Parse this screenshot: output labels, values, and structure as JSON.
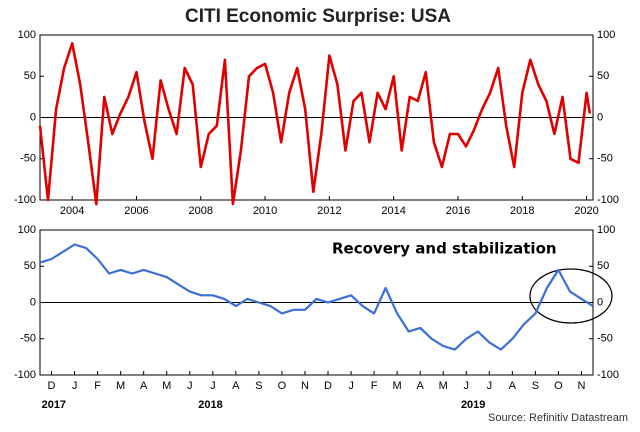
{
  "chart_data": [
    {
      "type": "line",
      "title": "CITI Economic Surprise: USA",
      "x": [
        2003.0,
        2003.25,
        2003.5,
        2003.75,
        2004.0,
        2004.25,
        2004.5,
        2004.75,
        2005.0,
        2005.25,
        2005.5,
        2005.75,
        2006.0,
        2006.25,
        2006.5,
        2006.75,
        2007.0,
        2007.25,
        2007.5,
        2007.75,
        2008.0,
        2008.25,
        2008.5,
        2008.75,
        2009.0,
        2009.25,
        2009.5,
        2009.75,
        2010.0,
        2010.25,
        2010.5,
        2010.75,
        2011.0,
        2011.25,
        2011.5,
        2011.75,
        2012.0,
        2012.25,
        2012.5,
        2012.75,
        2013.0,
        2013.25,
        2013.5,
        2013.75,
        2014.0,
        2014.25,
        2014.5,
        2014.75,
        2015.0,
        2015.25,
        2015.5,
        2015.75,
        2016.0,
        2016.25,
        2016.5,
        2016.75,
        2017.0,
        2017.25,
        2017.5,
        2017.75,
        2018.0,
        2018.25,
        2018.5,
        2018.75,
        2019.0,
        2019.25,
        2019.5,
        2019.75,
        2020.0,
        2020.1
      ],
      "series": [
        {
          "color": "#e00000",
          "values": [
            -10,
            -100,
            10,
            60,
            90,
            40,
            -30,
            -105,
            25,
            -20,
            5,
            25,
            55,
            -5,
            -50,
            45,
            10,
            -20,
            60,
            40,
            -60,
            -20,
            -10,
            70,
            -105,
            -40,
            50,
            60,
            65,
            30,
            -30,
            30,
            60,
            10,
            -90,
            -20,
            75,
            40,
            -40,
            20,
            30,
            -30,
            30,
            10,
            50,
            -40,
            25,
            20,
            55,
            -30,
            -60,
            -20,
            -20,
            -35,
            -15,
            10,
            30,
            60,
            -10,
            -60,
            30,
            70,
            40,
            20,
            -20,
            25,
            -50,
            -55,
            30,
            5
          ]
        }
      ],
      "xlim": [
        2003.0,
        2020.2
      ],
      "xticks": [
        2004,
        2006,
        2008,
        2010,
        2012,
        2014,
        2016,
        2018,
        2020
      ],
      "ylim": [
        -100,
        100
      ],
      "yticks": [
        -100,
        -50,
        0,
        50,
        100
      ]
    },
    {
      "type": "line",
      "x": [
        0,
        0.5,
        1,
        1.5,
        2,
        2.5,
        3,
        3.5,
        4,
        4.5,
        5,
        5.5,
        6,
        6.5,
        7,
        7.5,
        8,
        8.5,
        9,
        9.5,
        10,
        10.5,
        11,
        11.5,
        12,
        12.5,
        13,
        13.5,
        14,
        14.5,
        15,
        15.5,
        16,
        16.5,
        17,
        17.5,
        18,
        18.5,
        19,
        19.5,
        20,
        20.5,
        21,
        21.5,
        22,
        22.5,
        23,
        23.5,
        24
      ],
      "series": [
        {
          "color": "#3a6fd8",
          "values": [
            55,
            60,
            70,
            80,
            75,
            60,
            40,
            45,
            40,
            45,
            40,
            35,
            25,
            15,
            10,
            10,
            5,
            -5,
            5,
            0,
            -5,
            -15,
            -10,
            -10,
            5,
            0,
            5,
            10,
            -5,
            -15,
            20,
            -15,
            -40,
            -35,
            -50,
            -60,
            -65,
            -50,
            -40,
            -55,
            -65,
            -50,
            -30,
            -15,
            20,
            45,
            15,
            5,
            -5
          ]
        }
      ],
      "xlim": [
        0,
        24
      ],
      "xticks": [
        {
          "value": 0.5,
          "label": "D"
        },
        {
          "value": 1.5,
          "label": "J"
        },
        {
          "value": 2.5,
          "label": "F"
        },
        {
          "value": 3.5,
          "label": "M"
        },
        {
          "value": 4.5,
          "label": "A"
        },
        {
          "value": 5.5,
          "label": "M"
        },
        {
          "value": 6.5,
          "label": "J"
        },
        {
          "value": 7.5,
          "label": "J"
        },
        {
          "value": 8.5,
          "label": "A"
        },
        {
          "value": 9.5,
          "label": "S"
        },
        {
          "value": 10.5,
          "label": "O"
        },
        {
          "value": 11.5,
          "label": "N"
        },
        {
          "value": 12.5,
          "label": "D"
        },
        {
          "value": 13.5,
          "label": "J"
        },
        {
          "value": 14.5,
          "label": "F"
        },
        {
          "value": 15.5,
          "label": "M"
        },
        {
          "value": 16.5,
          "label": "A"
        },
        {
          "value": 17.5,
          "label": "M"
        },
        {
          "value": 18.5,
          "label": "J"
        },
        {
          "value": 19.5,
          "label": "J"
        },
        {
          "value": 20.5,
          "label": "A"
        },
        {
          "value": 21.5,
          "label": "S"
        },
        {
          "value": 22.5,
          "label": "O"
        },
        {
          "value": 23.5,
          "label": "N"
        }
      ],
      "year_labels": [
        {
          "value": 0.6,
          "label": "2017"
        },
        {
          "value": 7.4,
          "label": "2018"
        },
        {
          "value": 18.8,
          "label": "2019"
        }
      ],
      "ylim": [
        -100,
        100
      ],
      "yticks": [
        -100,
        -50,
        0,
        50,
        100
      ],
      "annotation": "Recovery and stabilization",
      "source": "Source: Refinitiv Datastream"
    }
  ]
}
